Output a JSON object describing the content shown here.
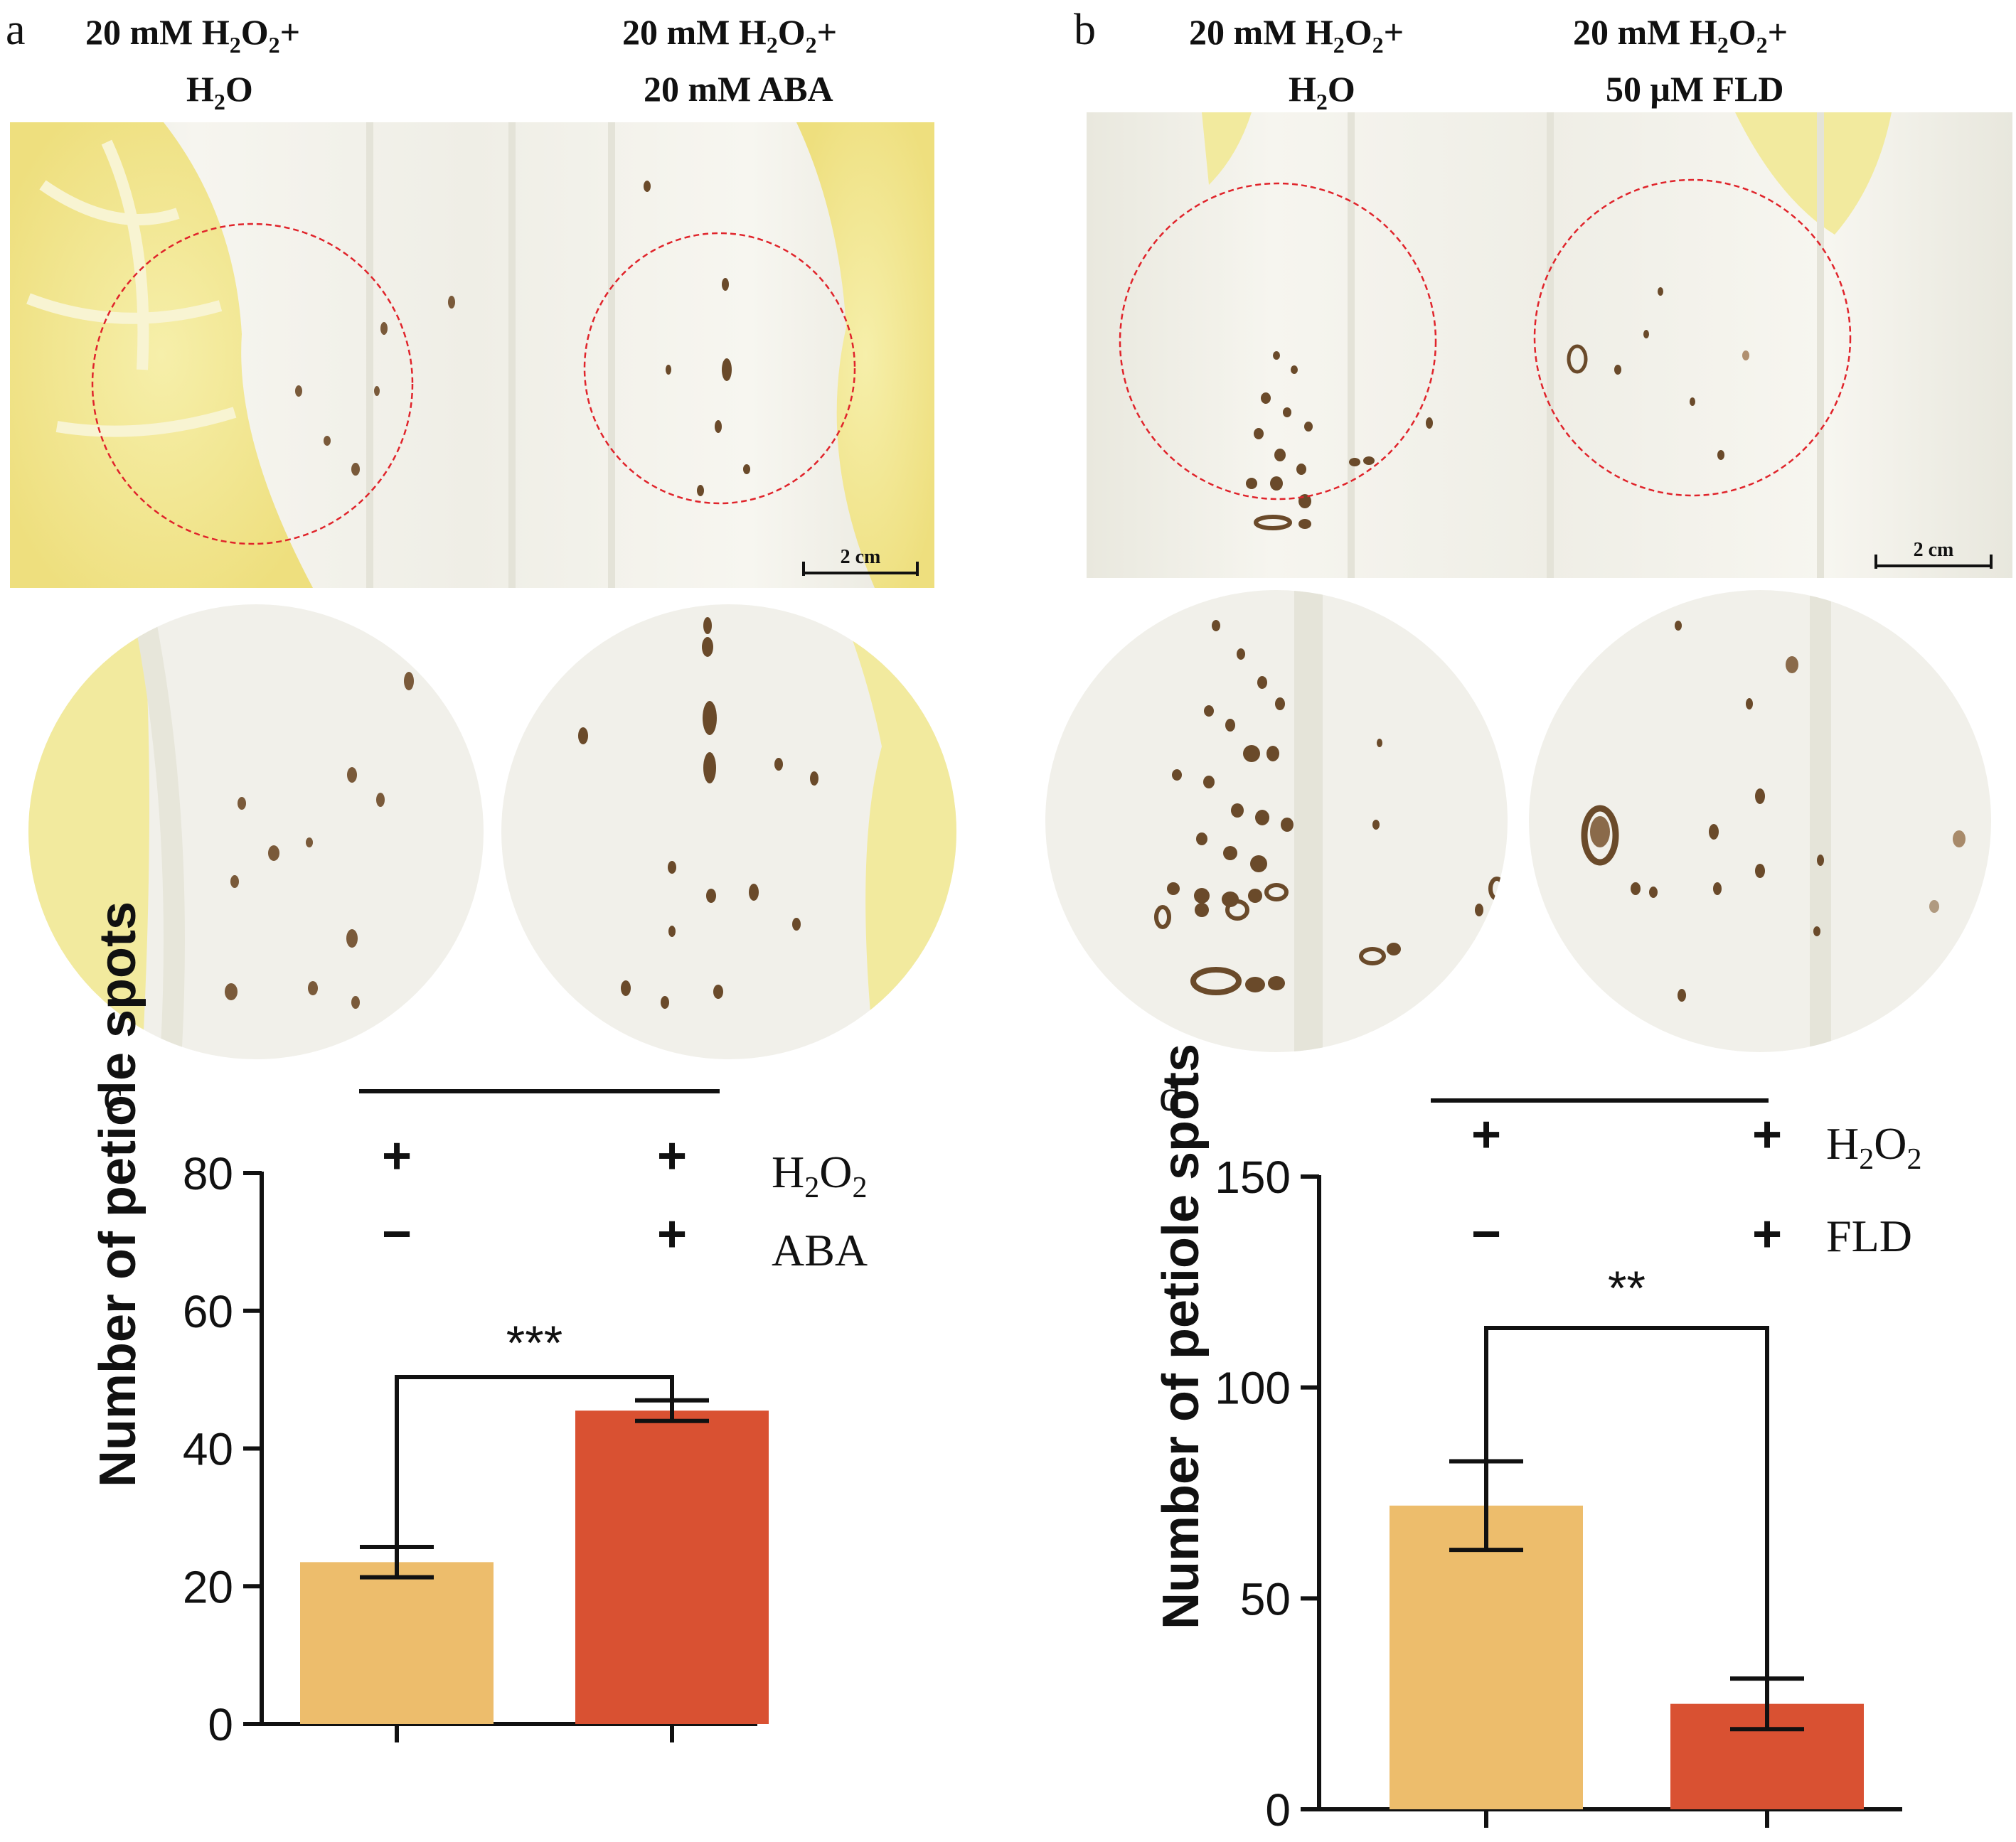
{
  "panels": {
    "a": {
      "letter": "a",
      "headings": [
        {
          "line1": [
            "20 mM H",
            "2",
            "O",
            "2",
            "+"
          ],
          "line2": [
            "H",
            "2",
            "O"
          ]
        },
        {
          "line1": [
            "20 mM H",
            "2",
            "O",
            "2",
            "+"
          ],
          "line2": [
            "20 mM ABA"
          ]
        }
      ],
      "scale_bar": "2 cm"
    },
    "b": {
      "letter": "b",
      "headings": [
        {
          "line1": [
            "20 mM H",
            "2",
            "O",
            "2",
            "+"
          ],
          "line2": [
            "H",
            "2",
            "O"
          ]
        },
        {
          "line1": [
            "20 mM H",
            "2",
            "O",
            "2",
            "+"
          ],
          "line2": [
            "50 μM FLD"
          ]
        }
      ],
      "scale_bar": "2 cm"
    }
  },
  "colors": {
    "bar_control": "#EDBD6C",
    "bar_treatment": "#D95132",
    "circle_outline": "#E0242B",
    "petiole": "#F1F0EA",
    "leaf": "#F3EB9E"
  },
  "chart_data": [
    {
      "panel": "c",
      "type": "bar",
      "ylabel": "Number of petiole spots",
      "ylim": [
        0,
        80
      ],
      "yticks": [
        "0",
        "20",
        "40",
        "60",
        "80"
      ],
      "values": [
        23.5,
        45.5
      ],
      "errors": [
        2.2,
        1.5
      ],
      "significance": "***",
      "treatment_rows": [
        {
          "label_parts": [
            "H",
            "2",
            "O",
            "2"
          ],
          "signs": [
            "+",
            "+"
          ]
        },
        {
          "label_parts": [
            "ABA"
          ],
          "signs": [
            "−",
            "+"
          ]
        }
      ]
    },
    {
      "panel": "d",
      "type": "bar",
      "ylabel": "Number of petiole spots",
      "ylim": [
        0,
        150
      ],
      "yticks": [
        "0",
        "50",
        "100",
        "150"
      ],
      "values": [
        72,
        25
      ],
      "errors": [
        10.5,
        6
      ],
      "significance": "**",
      "treatment_rows": [
        {
          "label_parts": [
            "H",
            "2",
            "O",
            "2"
          ],
          "signs": [
            "+",
            "+"
          ]
        },
        {
          "label_parts": [
            "FLD"
          ],
          "signs": [
            "−",
            "+"
          ]
        }
      ]
    }
  ]
}
